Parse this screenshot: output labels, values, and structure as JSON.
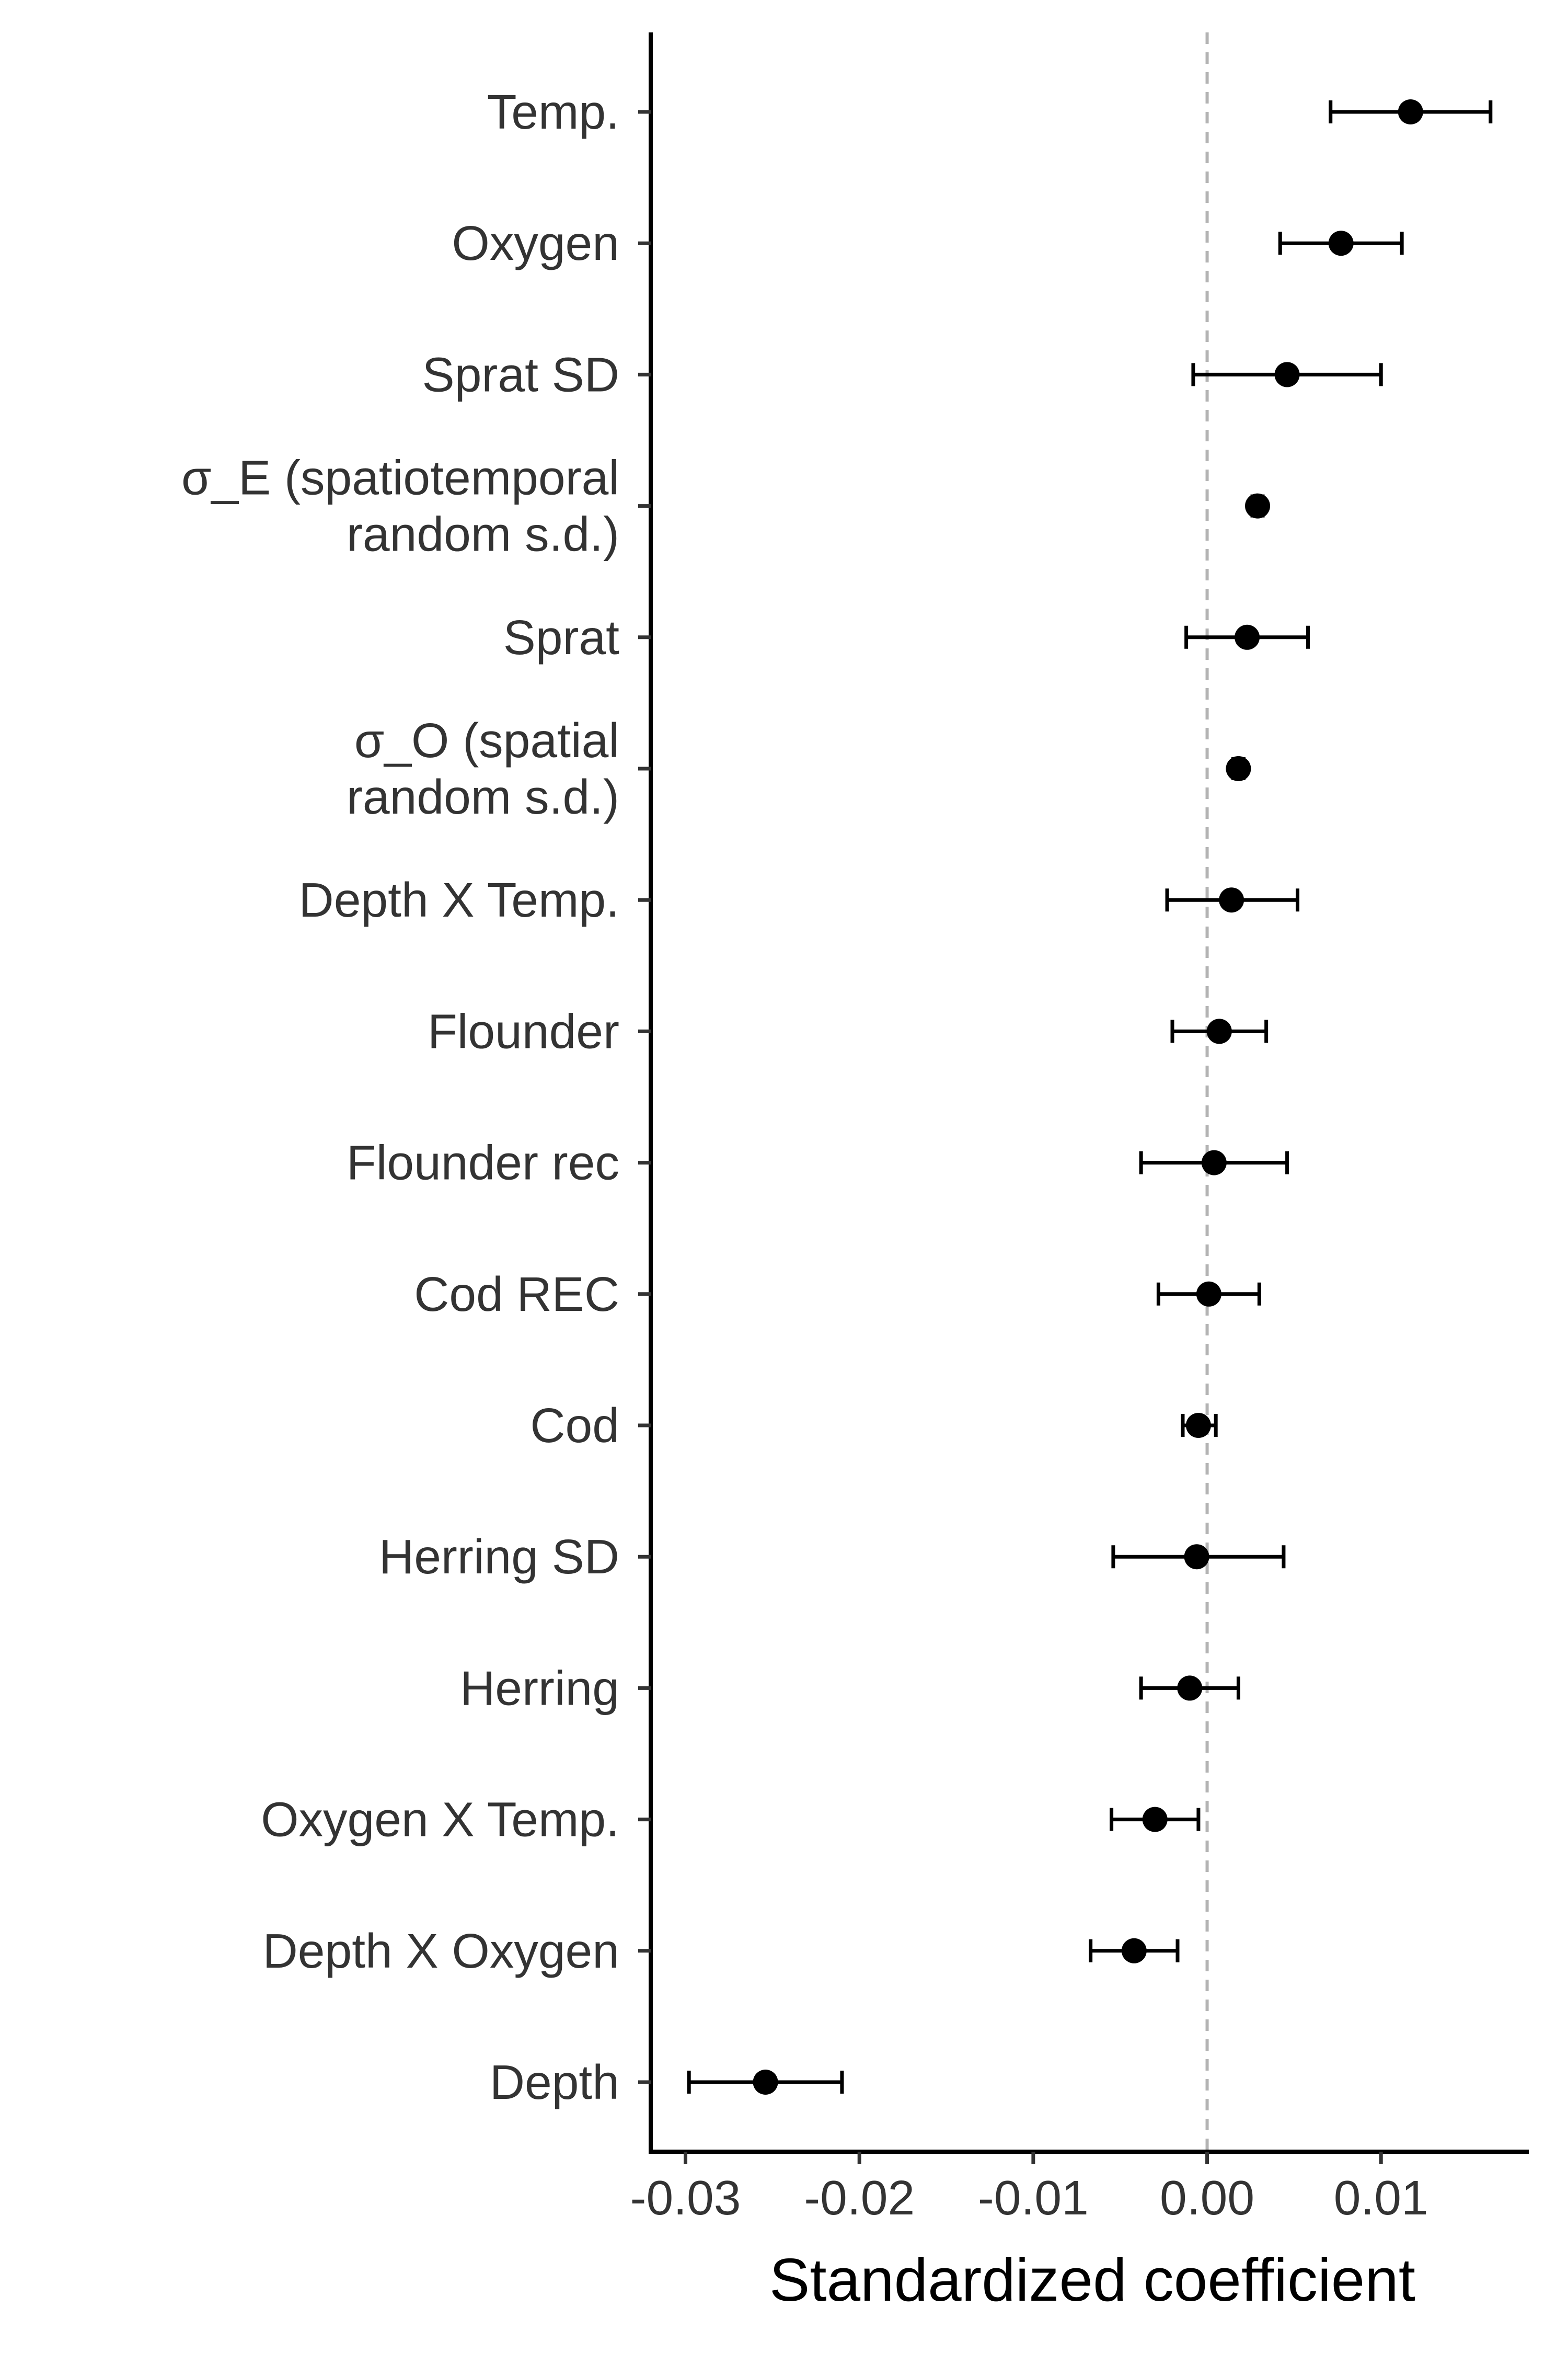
{
  "chart_data": {
    "type": "scatter",
    "subtype": "coefficient-plot-with-error-bars",
    "title": "",
    "xlabel": "Standardized coefficient",
    "ylabel": "",
    "xlim": [
      -0.032,
      0.0185
    ],
    "xticks": [
      {
        "value": -0.03,
        "label": "-0.03"
      },
      {
        "value": -0.02,
        "label": "-0.02"
      },
      {
        "value": -0.01,
        "label": "-0.01"
      },
      {
        "value": 0.0,
        "label": "0.00"
      },
      {
        "value": 0.01,
        "label": "0.01"
      }
    ],
    "reference_line": {
      "x": 0,
      "style": "dashed",
      "color": "#b3b3b3"
    },
    "grid": false,
    "point_color": "#000000",
    "points": [
      {
        "label": [
          "Temp."
        ],
        "estimate": 0.0117,
        "lower": 0.0071,
        "upper": 0.0163
      },
      {
        "label": [
          "Oxygen"
        ],
        "estimate": 0.0077,
        "lower": 0.0042,
        "upper": 0.0112
      },
      {
        "label": [
          "Sprat SD"
        ],
        "estimate": 0.0046,
        "lower": -0.0008,
        "upper": 0.01
      },
      {
        "label": [
          "σ_E (spatiotemporal",
          "random s.d.)"
        ],
        "estimate": 0.0029,
        "lower": 0.0026,
        "upper": 0.0032
      },
      {
        "label": [
          "Sprat"
        ],
        "estimate": 0.0023,
        "lower": -0.0012,
        "upper": 0.0058
      },
      {
        "label": [
          "σ_O (spatial",
          "random s.d.)"
        ],
        "estimate": 0.0018,
        "lower": 0.0015,
        "upper": 0.0021
      },
      {
        "label": [
          "Depth X Temp."
        ],
        "estimate": 0.0014,
        "lower": -0.0023,
        "upper": 0.0052
      },
      {
        "label": [
          "Flounder"
        ],
        "estimate": 0.0007,
        "lower": -0.002,
        "upper": 0.0034
      },
      {
        "label": [
          "Flounder rec"
        ],
        "estimate": 0.0004,
        "lower": -0.0038,
        "upper": 0.0046
      },
      {
        "label": [
          "Cod REC"
        ],
        "estimate": 0.0001,
        "lower": -0.0028,
        "upper": 0.003
      },
      {
        "label": [
          "Cod"
        ],
        "estimate": -0.0005,
        "lower": -0.0014,
        "upper": 0.0005
      },
      {
        "label": [
          "Herring SD"
        ],
        "estimate": -0.0006,
        "lower": -0.0054,
        "upper": 0.0044
      },
      {
        "label": [
          "Herring"
        ],
        "estimate": -0.001,
        "lower": -0.0038,
        "upper": 0.0018
      },
      {
        "label": [
          "Oxygen X Temp."
        ],
        "estimate": -0.003,
        "lower": -0.0055,
        "upper": -0.0005
      },
      {
        "label": [
          "Depth X Oxygen"
        ],
        "estimate": -0.0042,
        "lower": -0.0067,
        "upper": -0.0017
      },
      {
        "label": [
          "Depth"
        ],
        "estimate": -0.0254,
        "lower": -0.0298,
        "upper": -0.021
      }
    ]
  }
}
